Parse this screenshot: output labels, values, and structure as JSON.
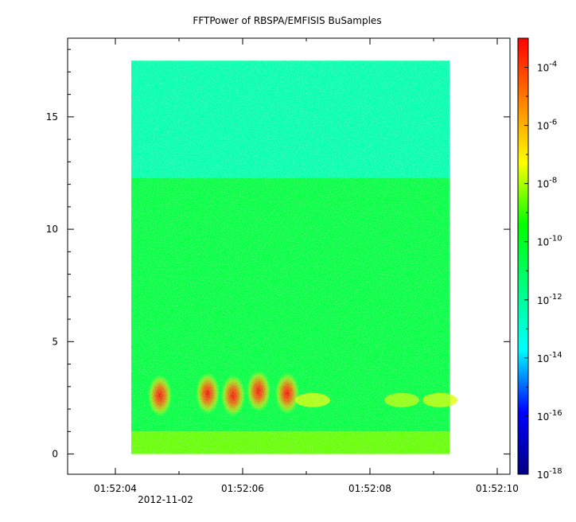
{
  "chart_data": {
    "type": "heatmap",
    "title": "FFTPower of RBSPA/EMFISIS  BuSamples",
    "xlabel": "",
    "ylabel": "",
    "x_ticks": [
      "01:52:04",
      "01:52:06",
      "01:52:08",
      "01:52:10"
    ],
    "x_date_label": "2012-11-02",
    "xlim": [
      "01:52:03.25",
      "01:52:10.2"
    ],
    "data_xrange": [
      "01:52:04.25",
      "01:52:09.25"
    ],
    "ylim": [
      -0.9,
      18.5
    ],
    "y_ticks": [
      0,
      5,
      10,
      15
    ],
    "data_yrange": [
      0,
      17.5
    ],
    "z_scale": "log",
    "zlim": [
      1e-18,
      0.001
    ],
    "z_ticks": [
      {
        "base": "10",
        "exp": "-4",
        "value": 0.0001
      },
      {
        "base": "10",
        "exp": "-6",
        "value": 1e-06
      },
      {
        "base": "10",
        "exp": "-8",
        "value": 1e-08
      },
      {
        "base": "10",
        "exp": "-10",
        "value": 1e-10
      },
      {
        "base": "10",
        "exp": "-12",
        "value": 1e-12
      },
      {
        "base": "10",
        "exp": "-14",
        "value": 1e-14
      },
      {
        "base": "10",
        "exp": "-16",
        "value": 1e-16
      },
      {
        "base": "10",
        "exp": "-18",
        "value": 1e-18
      }
    ],
    "colormap": [
      "#000080",
      "#0000ff",
      "#00ffff",
      "#00ff80",
      "#00ff00",
      "#ffff00",
      "#ff8000",
      "#ff0000"
    ],
    "background_levels": [
      {
        "y_range": [
          12.3,
          17.5
        ],
        "log10_power": -12.3
      },
      {
        "y_range": [
          1.0,
          12.3
        ],
        "log10_power": -10.5
      },
      {
        "y_range": [
          0.0,
          1.0
        ],
        "log10_power": -8.6
      }
    ],
    "bursts": [
      {
        "time": "01:52:04.70",
        "freq": 2.6,
        "log10_power": -5.5
      },
      {
        "time": "01:52:05.45",
        "freq": 2.7,
        "log10_power": -5.5
      },
      {
        "time": "01:52:05.85",
        "freq": 2.6,
        "log10_power": -6.0
      },
      {
        "time": "01:52:06.25",
        "freq": 2.8,
        "log10_power": -5.3
      },
      {
        "time": "01:52:06.70",
        "freq": 2.7,
        "log10_power": -5.6
      },
      {
        "time": "01:52:07.10",
        "freq": 2.4,
        "log10_power": -7.5
      },
      {
        "time": "01:52:08.50",
        "freq": 2.4,
        "log10_power": -7.8
      },
      {
        "time": "01:52:09.10",
        "freq": 2.4,
        "log10_power": -7.6
      }
    ]
  }
}
